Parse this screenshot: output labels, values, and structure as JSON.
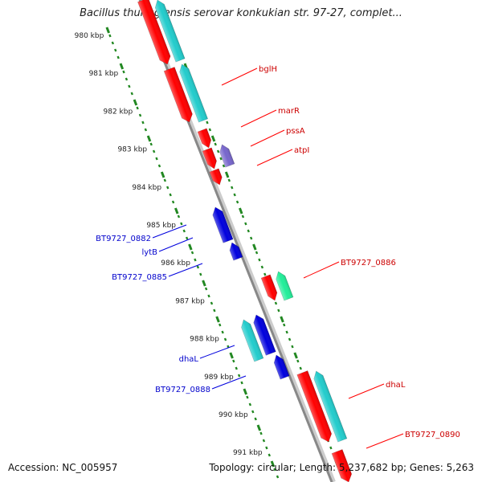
{
  "title": "Bacillus thuringiensis serovar konkukian str. 97-27, complet...",
  "footer": {
    "accession": "Accession: NC_005957",
    "summary": "Topology: circular; Length: 5,237,682 bp; Genes: 5,263"
  },
  "colors": {
    "forward": "#ff0000",
    "reverse": "#0000dd",
    "rna_cyan": "#22cccc",
    "rna_green": "#22ee99",
    "purple": "#7766cc",
    "ticks": "#228822",
    "backbone": "#888888"
  },
  "scale_labels": [
    "980 kbp",
    "981 kbp",
    "982 kbp",
    "983 kbp",
    "984 kbp",
    "985 kbp",
    "986 kbp",
    "987 kbp",
    "988 kbp",
    "989 kbp",
    "990 kbp",
    "991 kbp"
  ],
  "forward_labels": [
    "bglH",
    "marR",
    "pssA",
    "atpI",
    "BT9727_0886",
    "dhaL",
    "BT9727_0890"
  ],
  "reverse_labels": [
    "BT9727_0882",
    "lytB",
    "BT9727_0885",
    "dhaL",
    "BT9727_0888"
  ]
}
